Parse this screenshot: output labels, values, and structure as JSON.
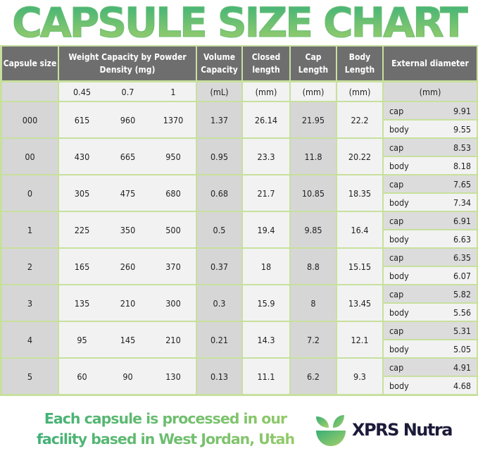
{
  "title": "CAPSULE SIZE CHART",
  "chart_data": {
    "type": "table",
    "headers": [
      "Capsule size",
      "Weight Capacity by Powder Density (mg)",
      "Volume Capacity",
      "Closed length",
      "Cap Length",
      "Body Length",
      "External diameter"
    ],
    "units": [
      "",
      "0.45",
      "0.7",
      "1",
      "(mL)",
      "(mm)",
      "(mm)",
      "(mm)",
      "(mm)"
    ],
    "diameter_labels": [
      "cap",
      "body"
    ],
    "rows": [
      {
        "size": "000",
        "w045": "615",
        "w07": "960",
        "w1": "1370",
        "volume": "1.37",
        "closed": "26.14",
        "cap_len": "21.95",
        "body_len": "22.2",
        "cap_d": "9.91",
        "body_d": "9.55"
      },
      {
        "size": "00",
        "w045": "430",
        "w07": "665",
        "w1": "950",
        "volume": "0.95",
        "closed": "23.3",
        "cap_len": "11.8",
        "body_len": "20.22",
        "cap_d": "8.53",
        "body_d": "8.18"
      },
      {
        "size": "0",
        "w045": "305",
        "w07": "475",
        "w1": "680",
        "volume": "0.68",
        "closed": "21.7",
        "cap_len": "10.85",
        "body_len": "18.35",
        "cap_d": "7.65",
        "body_d": "7.34"
      },
      {
        "size": "1",
        "w045": "225",
        "w07": "350",
        "w1": "500",
        "volume": "0.5",
        "closed": "19.4",
        "cap_len": "9.85",
        "body_len": "16.4",
        "cap_d": "6.91",
        "body_d": "6.63"
      },
      {
        "size": "2",
        "w045": "165",
        "w07": "260",
        "w1": "370",
        "volume": "0.37",
        "closed": "18",
        "cap_len": "8.8",
        "body_len": "15.15",
        "cap_d": "6.35",
        "body_d": "6.07"
      },
      {
        "size": "3",
        "w045": "135",
        "w07": "210",
        "w1": "300",
        "volume": "0.3",
        "closed": "15.9",
        "cap_len": "8",
        "body_len": "13.45",
        "cap_d": "5.82",
        "body_d": "5.56"
      },
      {
        "size": "4",
        "w045": "95",
        "w07": "145",
        "w1": "210",
        "volume": "0.21",
        "closed": "14.3",
        "cap_len": "7.2",
        "body_len": "12.1",
        "cap_d": "5.31",
        "body_d": "5.05"
      },
      {
        "size": "5",
        "w045": "60",
        "w07": "90",
        "w1": "130",
        "volume": "0.13",
        "closed": "11.1",
        "cap_len": "6.2",
        "body_len": "9.3",
        "cap_d": "4.91",
        "body_d": "4.68"
      }
    ]
  },
  "footer": {
    "line1": "Each capsule is processed in our",
    "line2": "facility based in West Jordan, Utah"
  },
  "brand": "XPRS Nutra",
  "colors": {
    "border": "#c8e09e",
    "header": "#6e6e6e",
    "accent": "#4db47a"
  }
}
